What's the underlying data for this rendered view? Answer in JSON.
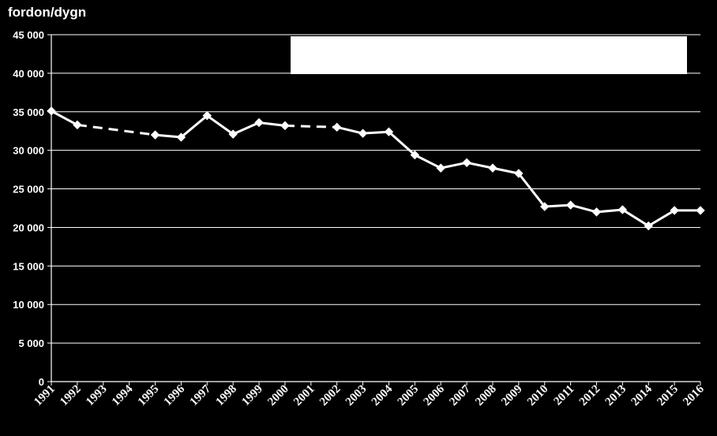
{
  "chart_data": {
    "type": "line",
    "title": "",
    "ylabel": "fordon/dygn",
    "xlabel": "",
    "ylim": [
      0,
      45000
    ],
    "yticks": [
      0,
      5000,
      10000,
      15000,
      20000,
      25000,
      30000,
      35000,
      40000,
      45000
    ],
    "ytick_labels": [
      "0",
      "5 000",
      "10 000",
      "15 000",
      "20 000",
      "25 000",
      "30 000",
      "35 000",
      "40 000",
      "45 000"
    ],
    "categories": [
      "1991",
      "1992",
      "1993",
      "1994",
      "1995",
      "1996",
      "1997",
      "1998",
      "1999",
      "2000",
      "2001",
      "2002",
      "2003",
      "2004",
      "2005",
      "2006",
      "2007",
      "2008",
      "2009",
      "2010",
      "2011",
      "2012",
      "2013",
      "2014",
      "2015",
      "2016"
    ],
    "series": [
      {
        "values": [
          35100,
          33300,
          null,
          null,
          32000,
          31700,
          34500,
          32100,
          33600,
          33200,
          null,
          33000,
          32200,
          32400,
          29400,
          27700,
          28400,
          27700,
          27000,
          22700,
          22900,
          22000,
          22300,
          20200,
          22200,
          22200
        ],
        "color": "#ffffff",
        "marker": "diamond",
        "gaps": "dashed"
      }
    ],
    "grid": true,
    "legend": "top-right"
  }
}
